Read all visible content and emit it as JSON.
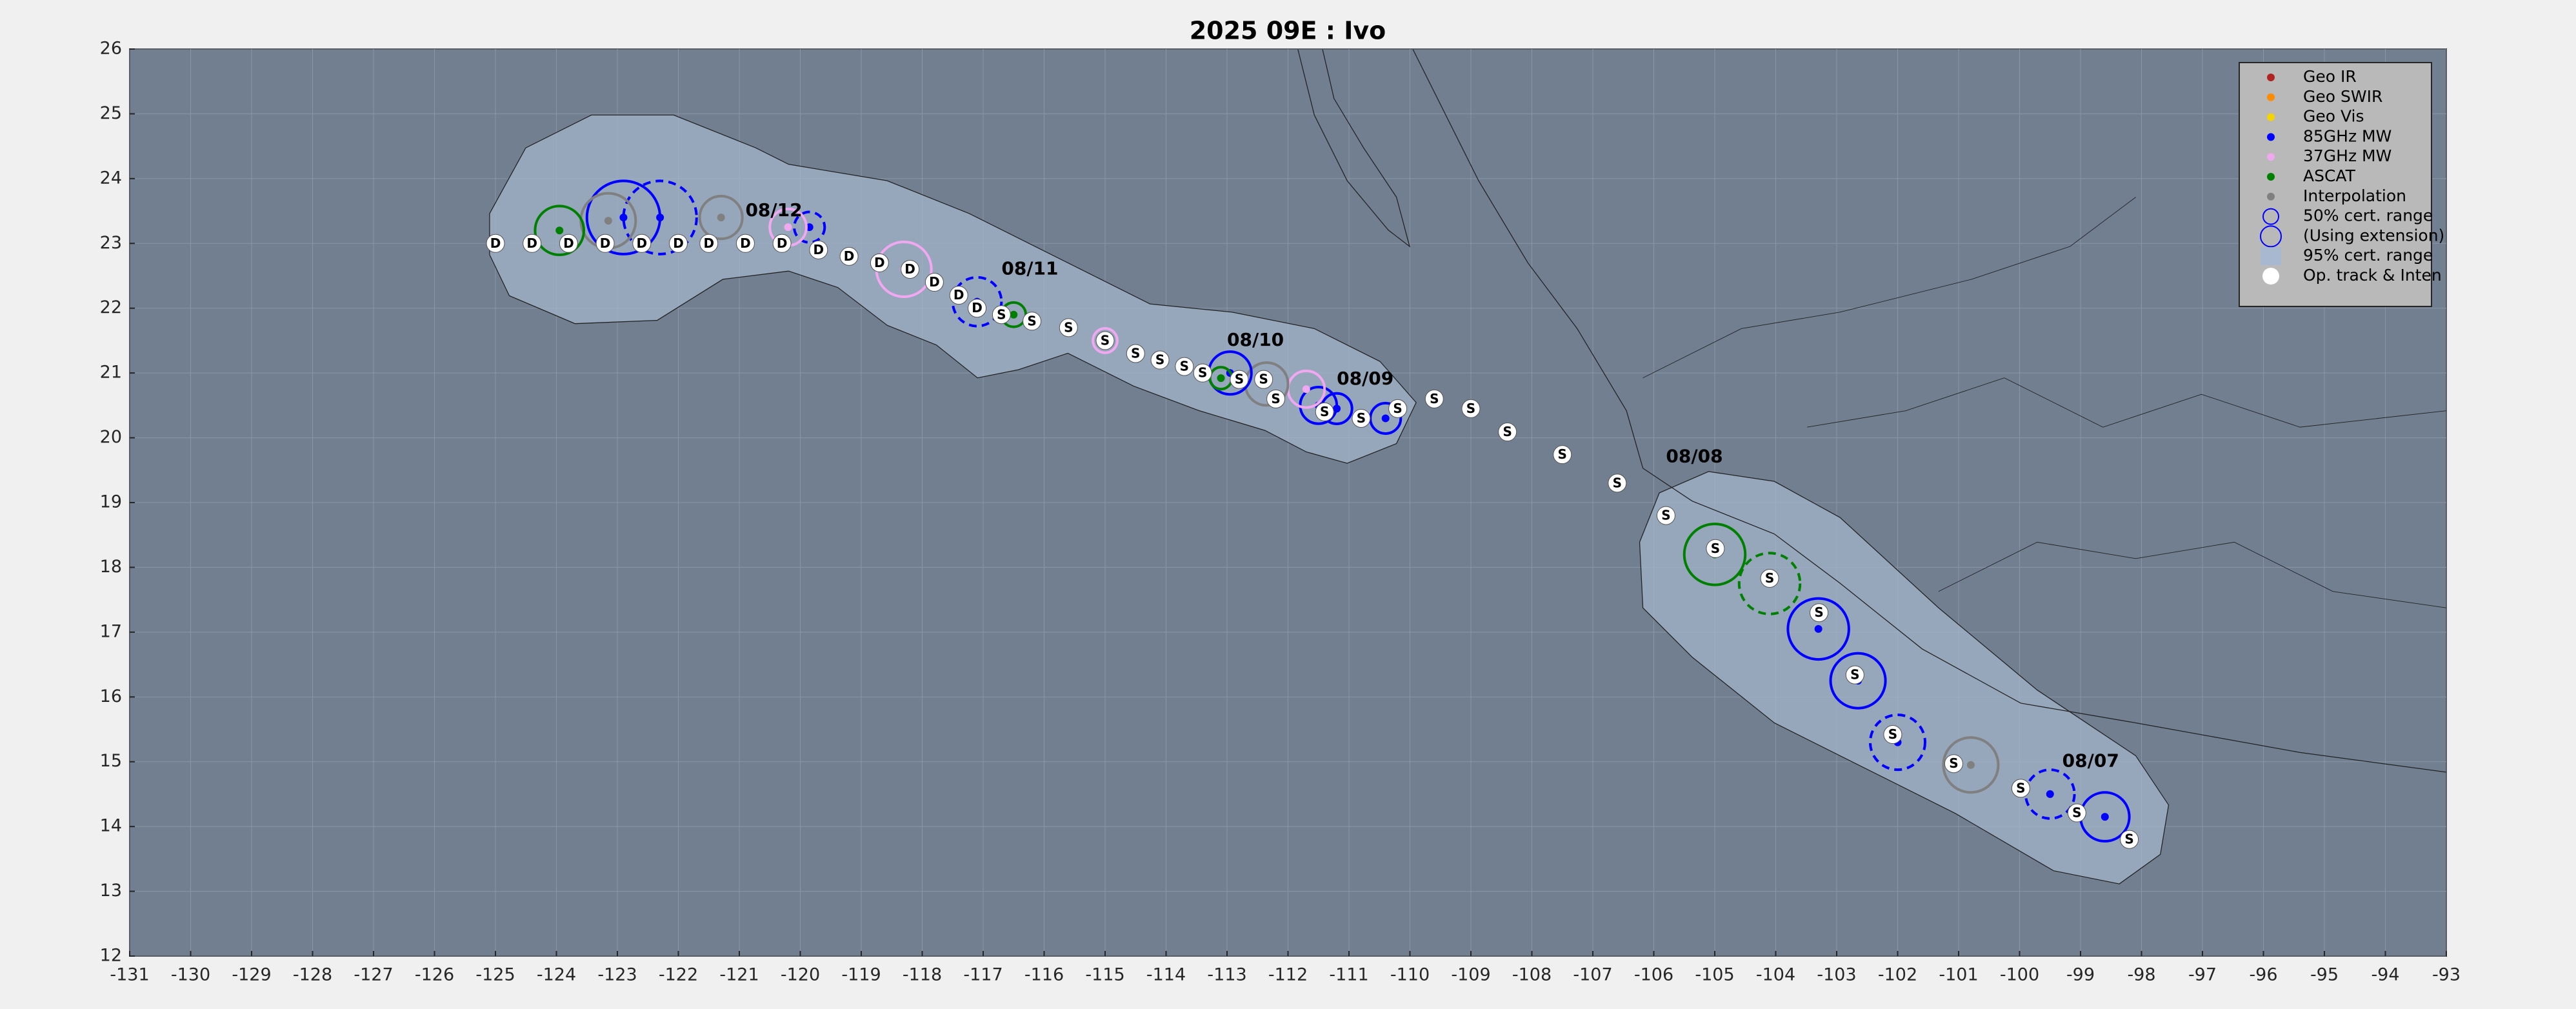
{
  "chart_data": {
    "type": "map",
    "title": "2025  09E :  Ivo",
    "xlim": [
      -131,
      -93
    ],
    "ylim": [
      12,
      26
    ],
    "xticks": [
      -131,
      -130,
      -129,
      -128,
      -127,
      -126,
      -125,
      -124,
      -123,
      -122,
      -121,
      -120,
      -119,
      -118,
      -117,
      -116,
      -115,
      -114,
      -113,
      -112,
      -111,
      -110,
      -109,
      -108,
      -107,
      -106,
      -105,
      -104,
      -103,
      -102,
      -101,
      -100,
      -99,
      -98,
      -97,
      -96,
      -95,
      -94,
      -93
    ],
    "yticks": [
      12,
      13,
      14,
      15,
      16,
      17,
      18,
      19,
      20,
      21,
      22,
      23,
      24,
      25,
      26
    ],
    "grid": true,
    "legend_position": "upper right",
    "legend": [
      {
        "label": "Geo IR",
        "color": "#b22222",
        "marker": "dot"
      },
      {
        "label": "Geo SWIR",
        "color": "#ff8c00",
        "marker": "dot"
      },
      {
        "label": "Geo Vis",
        "color": "#f5d300",
        "marker": "dot"
      },
      {
        "label": "85GHz MW",
        "color": "#0000ff",
        "marker": "dot"
      },
      {
        "label": "37GHz MW",
        "color": "#f0a8f0",
        "marker": "dot"
      },
      {
        "label": "ASCAT",
        "color": "#008000",
        "marker": "dot"
      },
      {
        "label": "Interpolation",
        "color": "#808080",
        "marker": "dot"
      },
      {
        "label": "50% cert. range",
        "color": "#0000ff",
        "marker": "circle"
      },
      {
        "label": "(Using extension)",
        "color": "#0000ff",
        "marker": "big-circle"
      },
      {
        "label": "95% cert. range",
        "color": "#a8b8d0",
        "marker": "square"
      },
      {
        "label": "Op. track & Inten",
        "color": "#ffffff",
        "marker": "disc"
      }
    ],
    "track": [
      {
        "lon": -98.2,
        "lat": 13.8,
        "label": "S"
      },
      {
        "lon": -99.06,
        "lat": 14.21,
        "label": "S"
      },
      {
        "lon": -99.98,
        "lat": 14.59,
        "label": "S"
      },
      {
        "lon": -101.08,
        "lat": 14.97,
        "label": "S"
      },
      {
        "lon": -102.08,
        "lat": 15.42,
        "label": "S"
      },
      {
        "lon": -102.7,
        "lat": 16.34,
        "label": "S"
      },
      {
        "lon": -103.29,
        "lat": 17.3,
        "label": "S"
      },
      {
        "lon": -104.1,
        "lat": 17.83,
        "label": "S"
      },
      {
        "lon": -104.99,
        "lat": 18.29,
        "label": "S"
      },
      {
        "lon": -105.8,
        "lat": 18.8,
        "label": "S"
      },
      {
        "lon": -106.6,
        "lat": 19.3,
        "label": "S"
      },
      {
        "lon": -107.5,
        "lat": 19.74,
        "label": "S"
      },
      {
        "lon": -108.4,
        "lat": 20.09,
        "label": "S"
      },
      {
        "lon": -109.0,
        "lat": 20.45,
        "label": "S"
      },
      {
        "lon": -109.6,
        "lat": 20.6,
        "label": "S"
      },
      {
        "lon": -110.2,
        "lat": 20.45,
        "label": "S"
      },
      {
        "lon": -110.8,
        "lat": 20.3,
        "label": "S"
      },
      {
        "lon": -111.4,
        "lat": 20.4,
        "label": "S"
      },
      {
        "lon": -112.2,
        "lat": 20.6,
        "label": "S"
      },
      {
        "lon": -112.4,
        "lat": 20.9,
        "label": "S"
      },
      {
        "lon": -112.8,
        "lat": 20.9,
        "label": "S"
      },
      {
        "lon": -113.4,
        "lat": 21.0,
        "label": "S"
      },
      {
        "lon": -113.7,
        "lat": 21.1,
        "label": "S"
      },
      {
        "lon": -114.1,
        "lat": 21.2,
        "label": "S"
      },
      {
        "lon": -114.5,
        "lat": 21.3,
        "label": "S"
      },
      {
        "lon": -115.0,
        "lat": 21.5,
        "label": "S"
      },
      {
        "lon": -115.6,
        "lat": 21.7,
        "label": "S"
      },
      {
        "lon": -116.2,
        "lat": 21.8,
        "label": "S"
      },
      {
        "lon": -116.7,
        "lat": 21.9,
        "label": "S"
      },
      {
        "lon": -117.1,
        "lat": 22.0,
        "label": "D"
      },
      {
        "lon": -117.4,
        "lat": 22.2,
        "label": "D"
      },
      {
        "lon": -117.8,
        "lat": 22.4,
        "label": "D"
      },
      {
        "lon": -118.2,
        "lat": 22.6,
        "label": "D"
      },
      {
        "lon": -118.7,
        "lat": 22.7,
        "label": "D"
      },
      {
        "lon": -119.2,
        "lat": 22.8,
        "label": "D"
      },
      {
        "lon": -119.7,
        "lat": 22.9,
        "label": "D"
      },
      {
        "lon": -120.3,
        "lat": 23.0,
        "label": "D"
      },
      {
        "lon": -120.9,
        "lat": 23.0,
        "label": "D"
      },
      {
        "lon": -121.5,
        "lat": 23.0,
        "label": "D"
      },
      {
        "lon": -122.0,
        "lat": 23.0,
        "label": "D"
      },
      {
        "lon": -122.6,
        "lat": 23.0,
        "label": "D"
      },
      {
        "lon": -123.2,
        "lat": 23.0,
        "label": "D"
      },
      {
        "lon": -123.8,
        "lat": 23.0,
        "label": "D"
      },
      {
        "lon": -124.4,
        "lat": 23.0,
        "label": "D"
      },
      {
        "lon": -125.0,
        "lat": 23.0,
        "label": "D"
      }
    ],
    "fixes": [
      {
        "lon": -98.6,
        "lat": 14.15,
        "radius": 0.4,
        "color": "#0000ff",
        "dashed": false
      },
      {
        "lon": -99.5,
        "lat": 14.5,
        "radius": 0.4,
        "color": "#0000ff",
        "dashed": true
      },
      {
        "lon": -100.8,
        "lat": 14.95,
        "radius": 0.45,
        "color": "#808080",
        "dashed": false
      },
      {
        "lon": -102.0,
        "lat": 15.3,
        "radius": 0.45,
        "color": "#0000ff",
        "dashed": true
      },
      {
        "lon": -102.65,
        "lat": 16.25,
        "radius": 0.45,
        "color": "#0000ff",
        "dashed": false
      },
      {
        "lon": -103.3,
        "lat": 17.05,
        "radius": 0.5,
        "color": "#0000ff",
        "dashed": false
      },
      {
        "lon": -104.1,
        "lat": 17.75,
        "radius": 0.5,
        "color": "#008000",
        "dashed": true
      },
      {
        "lon": -105.0,
        "lat": 18.2,
        "radius": 0.5,
        "color": "#008000",
        "dashed": false
      },
      {
        "lon": -110.4,
        "lat": 20.3,
        "radius": 0.25,
        "color": "#0000ff",
        "dashed": false
      },
      {
        "lon": -111.2,
        "lat": 20.45,
        "radius": 0.25,
        "color": "#0000ff",
        "dashed": false
      },
      {
        "lon": -111.5,
        "lat": 20.5,
        "radius": 0.3,
        "color": "#0000ff",
        "dashed": false
      },
      {
        "lon": -111.7,
        "lat": 20.75,
        "radius": 0.3,
        "color": "#f0a8f0",
        "dashed": false
      },
      {
        "lon": -112.35,
        "lat": 20.83,
        "radius": 0.35,
        "color": "#808080",
        "dashed": false
      },
      {
        "lon": -112.95,
        "lat": 21.0,
        "radius": 0.35,
        "color": "#0000ff",
        "dashed": false
      },
      {
        "lon": -113.1,
        "lat": 20.92,
        "radius": 0.18,
        "color": "#008000",
        "dashed": false
      },
      {
        "lon": -115.0,
        "lat": 21.5,
        "radius": 0.2,
        "color": "#f0a8f0",
        "dashed": false
      },
      {
        "lon": -116.5,
        "lat": 21.9,
        "radius": 0.2,
        "color": "#008000",
        "dashed": false
      },
      {
        "lon": -117.1,
        "lat": 22.1,
        "radius": 0.4,
        "color": "#0000ff",
        "dashed": true
      },
      {
        "lon": -118.3,
        "lat": 22.6,
        "radius": 0.45,
        "color": "#f0a8f0",
        "dashed": false
      },
      {
        "lon": -119.85,
        "lat": 23.25,
        "radius": 0.25,
        "color": "#0000ff",
        "dashed": true
      },
      {
        "lon": -120.2,
        "lat": 23.25,
        "radius": 0.3,
        "color": "#f0a8f0",
        "dashed": false
      },
      {
        "lon": -121.3,
        "lat": 23.4,
        "radius": 0.35,
        "color": "#808080",
        "dashed": false
      },
      {
        "lon": -122.3,
        "lat": 23.4,
        "radius": 0.6,
        "color": "#0000ff",
        "dashed": true
      },
      {
        "lon": -122.9,
        "lat": 23.4,
        "radius": 0.6,
        "color": "#0000ff",
        "dashed": false
      },
      {
        "lon": -123.15,
        "lat": 23.35,
        "radius": 0.45,
        "color": "#808080",
        "dashed": false
      },
      {
        "lon": -123.95,
        "lat": 23.2,
        "radius": 0.4,
        "color": "#008000",
        "dashed": false
      }
    ],
    "annotations": [
      {
        "text": "08/07",
        "lon": -99.3,
        "lat": 15.0
      },
      {
        "text": "08/08",
        "lon": -105.8,
        "lat": 19.7
      },
      {
        "text": "08/09",
        "lon": -111.2,
        "lat": 20.9
      },
      {
        "text": "08/10",
        "lon": -113.0,
        "lat": 21.5
      },
      {
        "text": "08/11",
        "lon": -116.7,
        "lat": 22.6
      },
      {
        "text": "08/12",
        "lon": -120.9,
        "lat": 23.5
      }
    ]
  }
}
